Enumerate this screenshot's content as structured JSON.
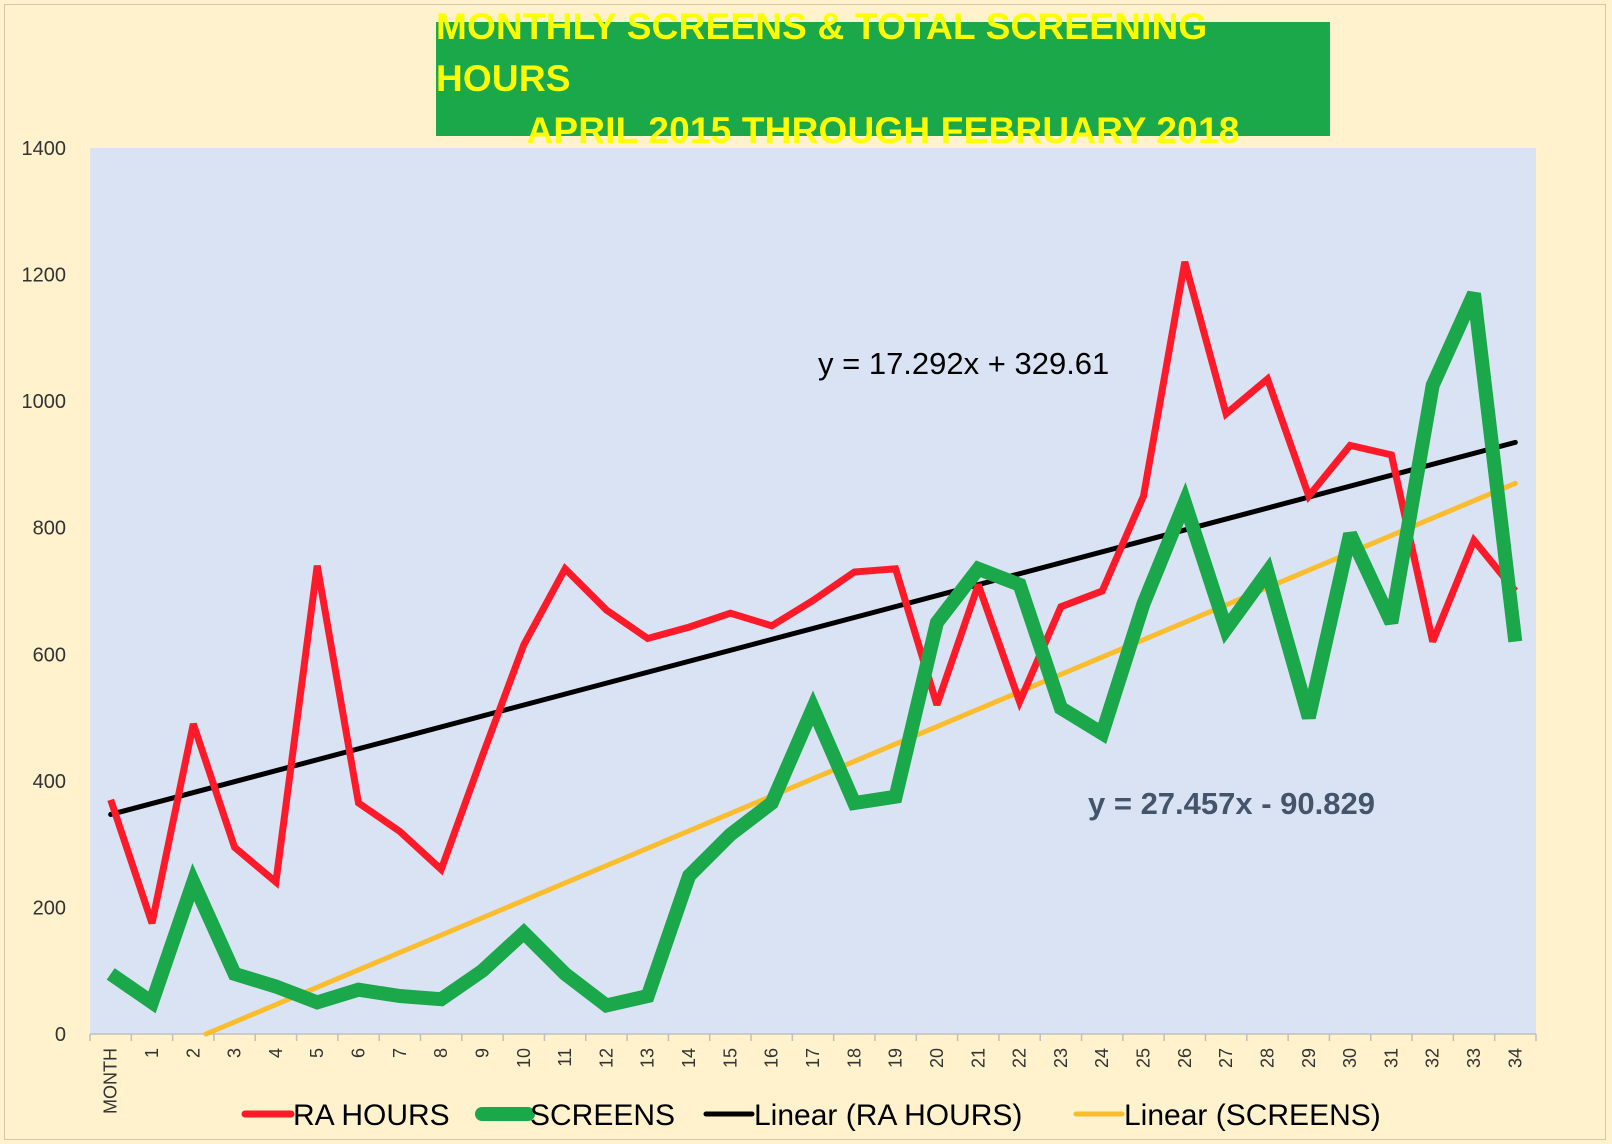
{
  "chart_data": {
    "type": "line",
    "title": "MONTHLY SCREENS & TOTAL SCREENING HOURS",
    "subtitle": "APRIL 2015 THROUGH FEBRUARY 2018",
    "categories": [
      "MONTH",
      "1",
      "2",
      "3",
      "4",
      "5",
      "6",
      "7",
      "8",
      "9",
      "10",
      "11",
      "12",
      "13",
      "14",
      "15",
      "16",
      "17",
      "18",
      "19",
      "20",
      "21",
      "22",
      "23",
      "24",
      "25",
      "26",
      "27",
      "28",
      "29",
      "30",
      "31",
      "32",
      "33",
      "34"
    ],
    "y_ticks": [
      "0",
      "200",
      "400",
      "600",
      "800",
      "1000",
      "1200",
      "1400"
    ],
    "ylim": [
      0,
      1400
    ],
    "grid": false,
    "legend_position": "bottom",
    "series": [
      {
        "name": "RA HOURS",
        "color": "#ff1a2a",
        "values": [
          370,
          175,
          490,
          295,
          240,
          740,
          365,
          320,
          260,
          440,
          615,
          735,
          670,
          625,
          643,
          665,
          645,
          685,
          730,
          735,
          520,
          710,
          525,
          675,
          700,
          850,
          1220,
          980,
          1035,
          850,
          930,
          915,
          620,
          780,
          700
        ]
      },
      {
        "name": "SCREENS",
        "color": "#1aa84b",
        "values": [
          95,
          50,
          240,
          95,
          75,
          50,
          70,
          60,
          55,
          100,
          160,
          95,
          45,
          60,
          250,
          315,
          365,
          515,
          365,
          375,
          650,
          735,
          710,
          515,
          475,
          680,
          840,
          640,
          730,
          500,
          790,
          650,
          1025,
          1170,
          620
        ]
      }
    ],
    "trendlines": [
      {
        "name": "Linear  (RA HOURS)",
        "color": "#000000",
        "slope": 17.292,
        "intercept": 329.61,
        "equation": "y = 17.292x + 329.61"
      },
      {
        "name": "Linear  (SCREENS)",
        "color": "#fbbd2d",
        "slope": 27.457,
        "intercept": -90.829,
        "equation": "y = 27.457x - 90.829"
      }
    ]
  },
  "colors": {
    "background": "#fff2cc",
    "plot_area": "#dae3f3",
    "title_bg": "#1aa84b",
    "title_text": "#ffff00",
    "equation_screens": "#44546a"
  }
}
